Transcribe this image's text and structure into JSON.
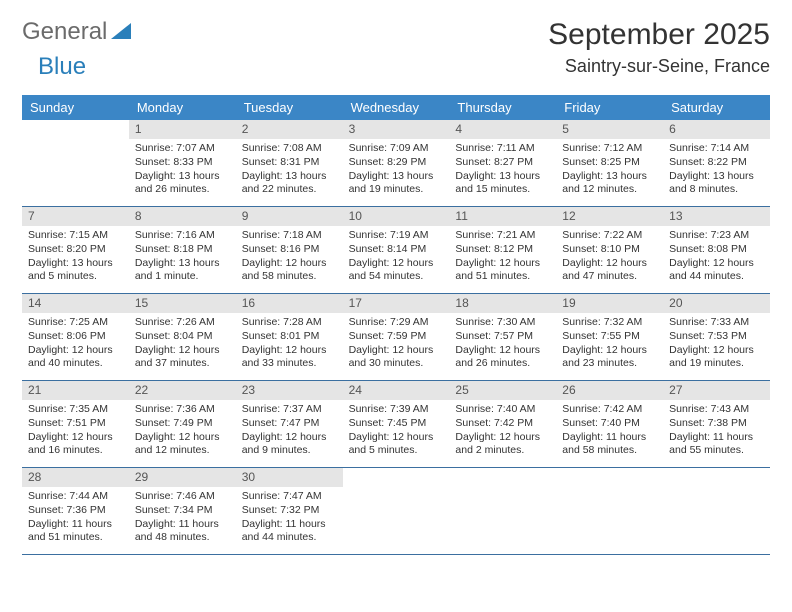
{
  "logo": {
    "general": "General",
    "blue": "Blue"
  },
  "title": "September 2025",
  "location": "Saintry-sur-Seine, France",
  "colors": {
    "header_bg": "#3b86c6",
    "header_text": "#ffffff",
    "daynum_bg": "#e5e5e5",
    "row_border": "#3b6fa0",
    "logo_gray": "#6b6b6b",
    "logo_blue": "#2a7fba"
  },
  "daysOfWeek": [
    "Sunday",
    "Monday",
    "Tuesday",
    "Wednesday",
    "Thursday",
    "Friday",
    "Saturday"
  ],
  "weeks": [
    [
      {
        "n": "",
        "sr": "",
        "ss": "",
        "dl": ""
      },
      {
        "n": "1",
        "sr": "Sunrise: 7:07 AM",
        "ss": "Sunset: 8:33 PM",
        "dl": "Daylight: 13 hours and 26 minutes."
      },
      {
        "n": "2",
        "sr": "Sunrise: 7:08 AM",
        "ss": "Sunset: 8:31 PM",
        "dl": "Daylight: 13 hours and 22 minutes."
      },
      {
        "n": "3",
        "sr": "Sunrise: 7:09 AM",
        "ss": "Sunset: 8:29 PM",
        "dl": "Daylight: 13 hours and 19 minutes."
      },
      {
        "n": "4",
        "sr": "Sunrise: 7:11 AM",
        "ss": "Sunset: 8:27 PM",
        "dl": "Daylight: 13 hours and 15 minutes."
      },
      {
        "n": "5",
        "sr": "Sunrise: 7:12 AM",
        "ss": "Sunset: 8:25 PM",
        "dl": "Daylight: 13 hours and 12 minutes."
      },
      {
        "n": "6",
        "sr": "Sunrise: 7:14 AM",
        "ss": "Sunset: 8:22 PM",
        "dl": "Daylight: 13 hours and 8 minutes."
      }
    ],
    [
      {
        "n": "7",
        "sr": "Sunrise: 7:15 AM",
        "ss": "Sunset: 8:20 PM",
        "dl": "Daylight: 13 hours and 5 minutes."
      },
      {
        "n": "8",
        "sr": "Sunrise: 7:16 AM",
        "ss": "Sunset: 8:18 PM",
        "dl": "Daylight: 13 hours and 1 minute."
      },
      {
        "n": "9",
        "sr": "Sunrise: 7:18 AM",
        "ss": "Sunset: 8:16 PM",
        "dl": "Daylight: 12 hours and 58 minutes."
      },
      {
        "n": "10",
        "sr": "Sunrise: 7:19 AM",
        "ss": "Sunset: 8:14 PM",
        "dl": "Daylight: 12 hours and 54 minutes."
      },
      {
        "n": "11",
        "sr": "Sunrise: 7:21 AM",
        "ss": "Sunset: 8:12 PM",
        "dl": "Daylight: 12 hours and 51 minutes."
      },
      {
        "n": "12",
        "sr": "Sunrise: 7:22 AM",
        "ss": "Sunset: 8:10 PM",
        "dl": "Daylight: 12 hours and 47 minutes."
      },
      {
        "n": "13",
        "sr": "Sunrise: 7:23 AM",
        "ss": "Sunset: 8:08 PM",
        "dl": "Daylight: 12 hours and 44 minutes."
      }
    ],
    [
      {
        "n": "14",
        "sr": "Sunrise: 7:25 AM",
        "ss": "Sunset: 8:06 PM",
        "dl": "Daylight: 12 hours and 40 minutes."
      },
      {
        "n": "15",
        "sr": "Sunrise: 7:26 AM",
        "ss": "Sunset: 8:04 PM",
        "dl": "Daylight: 12 hours and 37 minutes."
      },
      {
        "n": "16",
        "sr": "Sunrise: 7:28 AM",
        "ss": "Sunset: 8:01 PM",
        "dl": "Daylight: 12 hours and 33 minutes."
      },
      {
        "n": "17",
        "sr": "Sunrise: 7:29 AM",
        "ss": "Sunset: 7:59 PM",
        "dl": "Daylight: 12 hours and 30 minutes."
      },
      {
        "n": "18",
        "sr": "Sunrise: 7:30 AM",
        "ss": "Sunset: 7:57 PM",
        "dl": "Daylight: 12 hours and 26 minutes."
      },
      {
        "n": "19",
        "sr": "Sunrise: 7:32 AM",
        "ss": "Sunset: 7:55 PM",
        "dl": "Daylight: 12 hours and 23 minutes."
      },
      {
        "n": "20",
        "sr": "Sunrise: 7:33 AM",
        "ss": "Sunset: 7:53 PM",
        "dl": "Daylight: 12 hours and 19 minutes."
      }
    ],
    [
      {
        "n": "21",
        "sr": "Sunrise: 7:35 AM",
        "ss": "Sunset: 7:51 PM",
        "dl": "Daylight: 12 hours and 16 minutes."
      },
      {
        "n": "22",
        "sr": "Sunrise: 7:36 AM",
        "ss": "Sunset: 7:49 PM",
        "dl": "Daylight: 12 hours and 12 minutes."
      },
      {
        "n": "23",
        "sr": "Sunrise: 7:37 AM",
        "ss": "Sunset: 7:47 PM",
        "dl": "Daylight: 12 hours and 9 minutes."
      },
      {
        "n": "24",
        "sr": "Sunrise: 7:39 AM",
        "ss": "Sunset: 7:45 PM",
        "dl": "Daylight: 12 hours and 5 minutes."
      },
      {
        "n": "25",
        "sr": "Sunrise: 7:40 AM",
        "ss": "Sunset: 7:42 PM",
        "dl": "Daylight: 12 hours and 2 minutes."
      },
      {
        "n": "26",
        "sr": "Sunrise: 7:42 AM",
        "ss": "Sunset: 7:40 PM",
        "dl": "Daylight: 11 hours and 58 minutes."
      },
      {
        "n": "27",
        "sr": "Sunrise: 7:43 AM",
        "ss": "Sunset: 7:38 PM",
        "dl": "Daylight: 11 hours and 55 minutes."
      }
    ],
    [
      {
        "n": "28",
        "sr": "Sunrise: 7:44 AM",
        "ss": "Sunset: 7:36 PM",
        "dl": "Daylight: 11 hours and 51 minutes."
      },
      {
        "n": "29",
        "sr": "Sunrise: 7:46 AM",
        "ss": "Sunset: 7:34 PM",
        "dl": "Daylight: 11 hours and 48 minutes."
      },
      {
        "n": "30",
        "sr": "Sunrise: 7:47 AM",
        "ss": "Sunset: 7:32 PM",
        "dl": "Daylight: 11 hours and 44 minutes."
      },
      {
        "n": "",
        "sr": "",
        "ss": "",
        "dl": ""
      },
      {
        "n": "",
        "sr": "",
        "ss": "",
        "dl": ""
      },
      {
        "n": "",
        "sr": "",
        "ss": "",
        "dl": ""
      },
      {
        "n": "",
        "sr": "",
        "ss": "",
        "dl": ""
      }
    ]
  ]
}
